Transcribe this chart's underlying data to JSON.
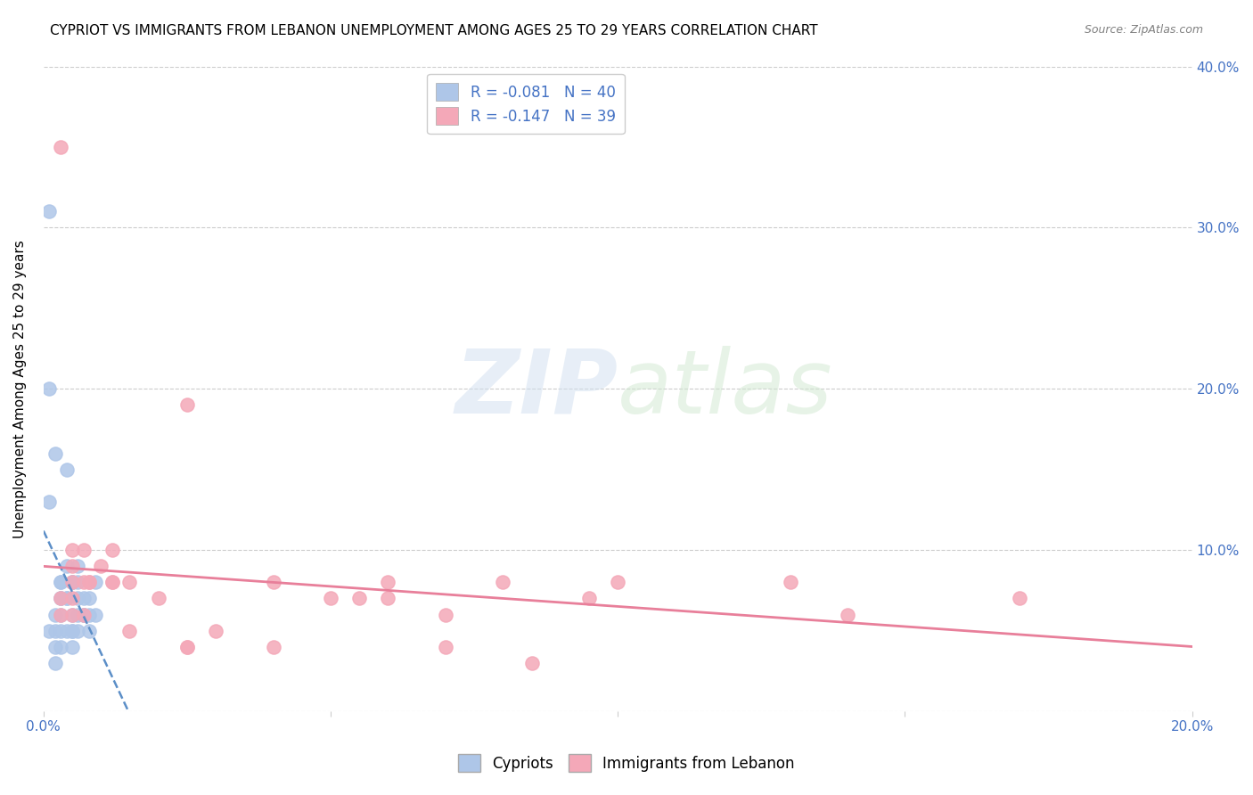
{
  "title": "CYPRIOT VS IMMIGRANTS FROM LEBANON UNEMPLOYMENT AMONG AGES 25 TO 29 YEARS CORRELATION CHART",
  "source": "Source: ZipAtlas.com",
  "xlabel": "",
  "ylabel": "Unemployment Among Ages 25 to 29 years",
  "xlim": [
    0.0,
    0.2
  ],
  "ylim": [
    0.0,
    0.4
  ],
  "xticks": [
    0.0,
    0.05,
    0.1,
    0.15,
    0.2
  ],
  "yticks": [
    0.0,
    0.1,
    0.2,
    0.3,
    0.4
  ],
  "xtick_labels": [
    "0.0%",
    "",
    "",
    "",
    "20.0%"
  ],
  "ytick_labels": [
    "",
    "10.0%",
    "20.0%",
    "30.0%",
    "40.0%"
  ],
  "legend_r_blue": "R = -0.081",
  "legend_n_blue": "N = 40",
  "legend_r_pink": "R = -0.147",
  "legend_n_pink": "N = 39",
  "legend_label_blue": "Cypriots",
  "legend_label_pink": "Immigrants from Lebanon",
  "cypriot_color": "#aec6e8",
  "lebanon_color": "#f4a8b8",
  "trend_blue_color": "#5b8ec7",
  "trend_pink_color": "#e87f9a",
  "watermark": "ZIPatlas",
  "background_color": "#ffffff",
  "cypriot_x": [
    0.005,
    0.008,
    0.003,
    0.002,
    0.004,
    0.006,
    0.001,
    0.003,
    0.007,
    0.005,
    0.002,
    0.004,
    0.009,
    0.006,
    0.003,
    0.001,
    0.008,
    0.005,
    0.004,
    0.002,
    0.006,
    0.003,
    0.007,
    0.005,
    0.002,
    0.004,
    0.006,
    0.001,
    0.003,
    0.009,
    0.005,
    0.002,
    0.007,
    0.004,
    0.003,
    0.006,
    0.001,
    0.008,
    0.005,
    0.003
  ],
  "cypriot_y": [
    0.05,
    0.07,
    0.08,
    0.06,
    0.09,
    0.05,
    0.31,
    0.07,
    0.06,
    0.08,
    0.16,
    0.15,
    0.06,
    0.07,
    0.08,
    0.2,
    0.05,
    0.06,
    0.07,
    0.05,
    0.09,
    0.06,
    0.07,
    0.08,
    0.04,
    0.05,
    0.06,
    0.13,
    0.07,
    0.08,
    0.05,
    0.03,
    0.06,
    0.07,
    0.04,
    0.08,
    0.05,
    0.06,
    0.04,
    0.05
  ],
  "lebanon_x": [
    0.005,
    0.012,
    0.025,
    0.003,
    0.007,
    0.06,
    0.005,
    0.04,
    0.012,
    0.07,
    0.025,
    0.005,
    0.1,
    0.007,
    0.055,
    0.14,
    0.17,
    0.003,
    0.008,
    0.015,
    0.03,
    0.005,
    0.08,
    0.012,
    0.05,
    0.003,
    0.007,
    0.095,
    0.02,
    0.06,
    0.01,
    0.13,
    0.005,
    0.04,
    0.015,
    0.07,
    0.008,
    0.025,
    0.085
  ],
  "lebanon_y": [
    0.09,
    0.08,
    0.04,
    0.35,
    0.1,
    0.08,
    0.1,
    0.08,
    0.1,
    0.04,
    0.19,
    0.06,
    0.08,
    0.06,
    0.07,
    0.06,
    0.07,
    0.07,
    0.08,
    0.08,
    0.05,
    0.08,
    0.08,
    0.08,
    0.07,
    0.06,
    0.08,
    0.07,
    0.07,
    0.07,
    0.09,
    0.08,
    0.07,
    0.04,
    0.05,
    0.06,
    0.08,
    0.04,
    0.03
  ],
  "grid_color": "#cccccc",
  "grid_linestyle": "--",
  "title_fontsize": 11,
  "axis_label_fontsize": 11,
  "tick_fontsize": 11,
  "legend_fontsize": 12,
  "marker_size": 120
}
